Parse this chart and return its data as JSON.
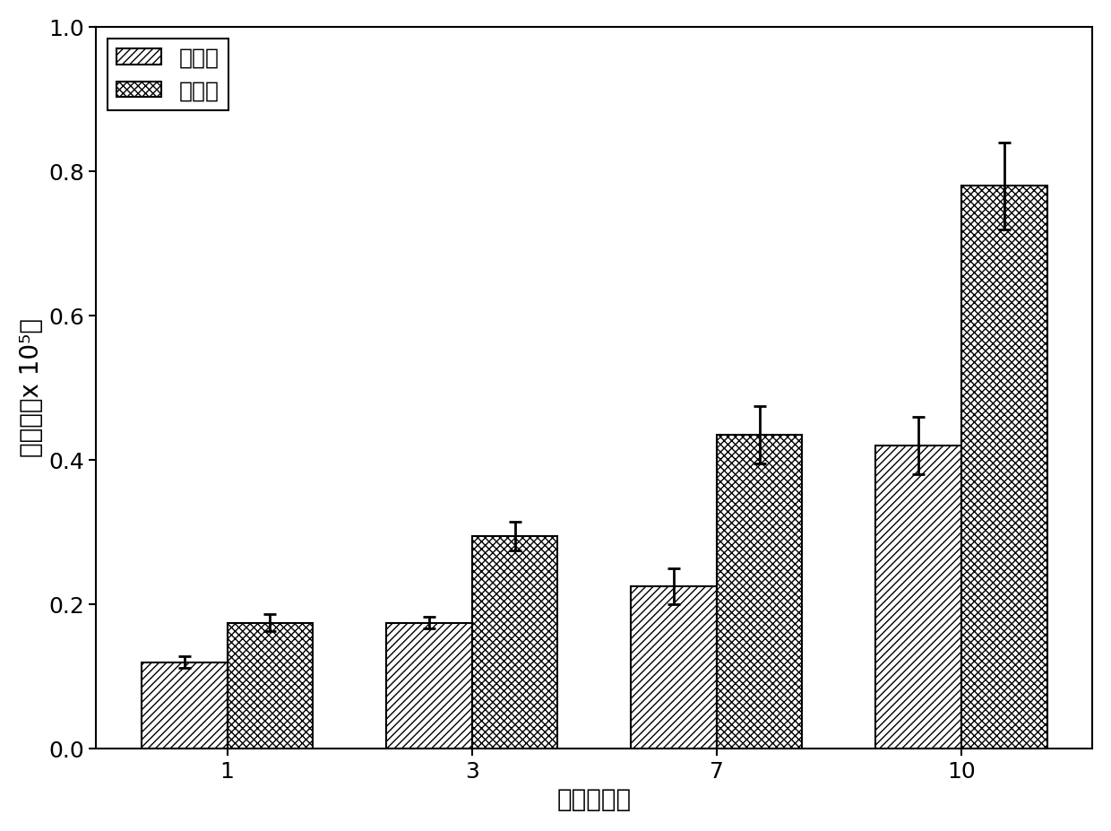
{
  "categories": [
    1,
    3,
    7,
    10
  ],
  "small_pore_values": [
    0.12,
    0.175,
    0.225,
    0.42
  ],
  "small_pore_errors": [
    0.008,
    0.008,
    0.025,
    0.04
  ],
  "large_pore_values": [
    0.175,
    0.295,
    0.435,
    0.78
  ],
  "large_pore_errors": [
    0.012,
    0.02,
    0.04,
    0.06
  ],
  "ylabel": "细胞数（x 10⁵）",
  "xlabel": "时间（天）",
  "ylim": [
    0.0,
    1.0
  ],
  "yticks": [
    0.0,
    0.2,
    0.4,
    0.6,
    0.8,
    1.0
  ],
  "legend_small": "小孔隙",
  "legend_large": "大孔隙",
  "bar_width": 0.35,
  "background_color": "#ffffff",
  "bar_edge_color": "#000000",
  "hatch_small": "////",
  "hatch_large": "xxxx",
  "label_fontsize": 20,
  "tick_fontsize": 18,
  "legend_fontsize": 18
}
